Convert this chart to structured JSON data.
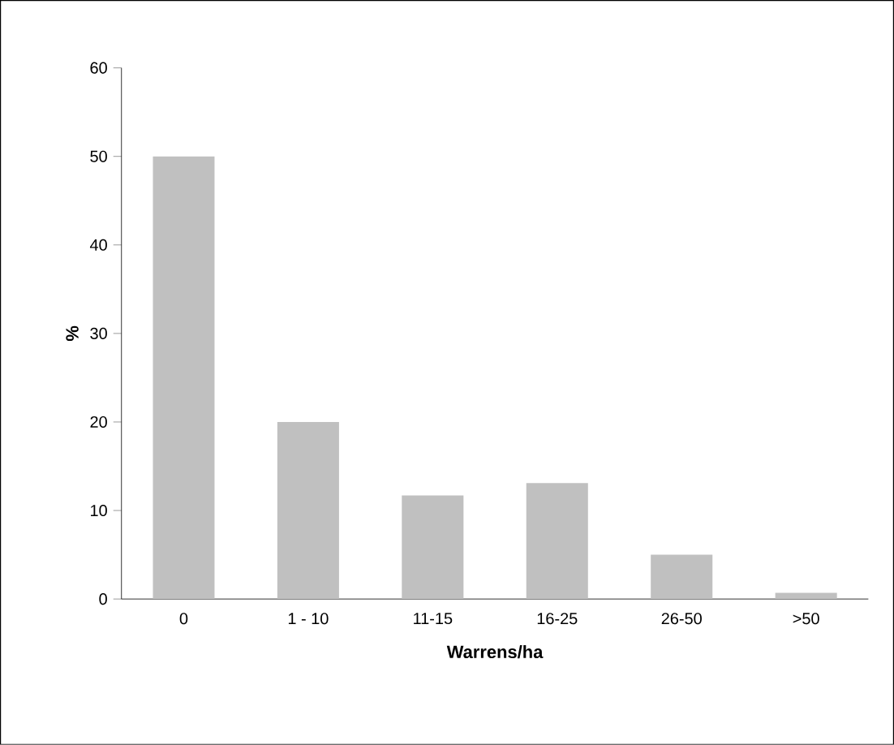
{
  "chart_data": {
    "type": "bar",
    "xlabel": "Warrens/ha",
    "ylabel": "%",
    "categories": [
      "0",
      "1 - 10",
      "11-15",
      "16-25",
      "26-50",
      ">50"
    ],
    "values": [
      50,
      20,
      11.7,
      13.1,
      5,
      0.7
    ],
    "color": "#c0c0c0",
    "ylim": [
      0,
      60
    ],
    "yticks": [
      0,
      10,
      20,
      30,
      40,
      50,
      60
    ]
  }
}
